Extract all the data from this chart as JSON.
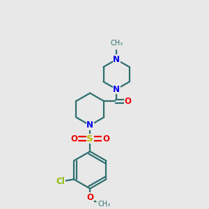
{
  "bg_color": "#e8e8e8",
  "bond_color": "#2d6e6e",
  "N_color": "#0000ee",
  "O_color": "#ee0000",
  "S_color": "#bbbb00",
  "Cl_color": "#88bb00",
  "line_width": 1.6,
  "font_size": 8.5,
  "figsize": [
    3.0,
    3.0
  ],
  "dpi": 100,
  "xlim": [
    0,
    10
  ],
  "ylim": [
    0,
    10
  ]
}
